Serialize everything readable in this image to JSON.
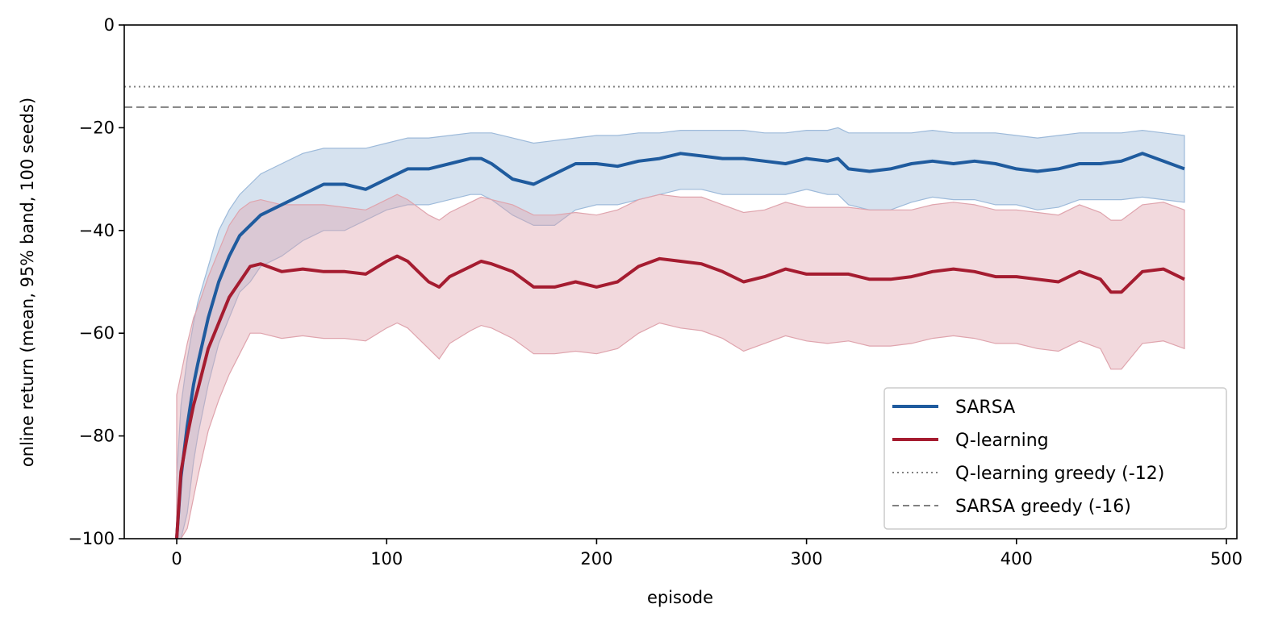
{
  "chart_data": {
    "type": "line",
    "title": "",
    "xlabel": "episode",
    "ylabel": "online return (mean, 95% band, 100 seeds)",
    "xlim": [
      -25,
      505
    ],
    "ylim": [
      -100,
      0
    ],
    "x_ticks": [
      0,
      100,
      200,
      300,
      400,
      500
    ],
    "y_ticks": [
      -100,
      -80,
      -60,
      -40,
      -20,
      0
    ],
    "x_tick_labels": [
      "0",
      "100",
      "200",
      "300",
      "400",
      "500"
    ],
    "y_tick_labels": [
      "−100",
      "−80",
      "−60",
      "−40",
      "−20",
      "0"
    ],
    "grid": false,
    "legend_position": "lower-right",
    "series": [
      {
        "name": "SARSA",
        "color": "#1f5b9e",
        "band_color": "#9dbada",
        "x": [
          0,
          2,
          5,
          8,
          10,
          15,
          20,
          25,
          30,
          35,
          40,
          50,
          60,
          70,
          80,
          90,
          100,
          110,
          120,
          130,
          140,
          145,
          150,
          160,
          170,
          180,
          190,
          200,
          210,
          220,
          230,
          240,
          250,
          260,
          270,
          280,
          290,
          300,
          310,
          315,
          320,
          330,
          340,
          350,
          360,
          370,
          380,
          390,
          400,
          410,
          420,
          430,
          440,
          450,
          460,
          470,
          480
        ],
        "mean": [
          -100,
          -88,
          -78,
          -70,
          -66,
          -57,
          -50,
          -45,
          -41,
          -39,
          -37,
          -35,
          -33,
          -31,
          -31,
          -32,
          -30,
          -28,
          -28,
          -27,
          -26,
          -26,
          -27,
          -30,
          -31,
          -29,
          -27,
          -27,
          -27.5,
          -26.5,
          -26,
          -25,
          -25.5,
          -26,
          -26,
          -26.5,
          -27,
          -26,
          -26.5,
          -26,
          -28,
          -28.5,
          -28,
          -27,
          -26.5,
          -27,
          -26.5,
          -27,
          -28,
          -28.5,
          -28,
          -27,
          -27,
          -26.5,
          -25,
          -26.5,
          -28
        ],
        "upper": [
          -88,
          -74,
          -65,
          -58,
          -54,
          -47,
          -40,
          -36,
          -33,
          -31,
          -29,
          -27,
          -25,
          -24,
          -24,
          -24,
          -23,
          -22,
          -22,
          -21.5,
          -21,
          -21,
          -21,
          -22,
          -23,
          -22.5,
          -22,
          -21.5,
          -21.5,
          -21,
          -21,
          -20.5,
          -20.5,
          -20.5,
          -20.5,
          -21,
          -21,
          -20.5,
          -20.5,
          -20,
          -21,
          -21,
          -21,
          -21,
          -20.5,
          -21,
          -21,
          -21,
          -21.5,
          -22,
          -21.5,
          -21,
          -21,
          -21,
          -20.5,
          -21,
          -21.5
        ],
        "lower": [
          -100,
          -100,
          -95,
          -85,
          -80,
          -70,
          -62,
          -57,
          -52,
          -50,
          -47,
          -45,
          -42,
          -40,
          -40,
          -38,
          -36,
          -35,
          -35,
          -34,
          -33,
          -33,
          -34,
          -37,
          -39,
          -39,
          -36,
          -35,
          -35,
          -34,
          -33,
          -32,
          -32,
          -33,
          -33,
          -33,
          -33,
          -32,
          -33,
          -33,
          -35,
          -36,
          -36,
          -34.5,
          -33.5,
          -34,
          -34,
          -35,
          -35,
          -36,
          -35.5,
          -34,
          -34,
          -34,
          -33.5,
          -34,
          -34.5
        ]
      },
      {
        "name": "Q-learning",
        "color": "#a51c30",
        "band_color": "#dfa4ad",
        "x": [
          0,
          2,
          5,
          8,
          10,
          15,
          20,
          25,
          30,
          35,
          40,
          50,
          60,
          70,
          80,
          90,
          100,
          105,
          110,
          120,
          125,
          130,
          140,
          145,
          150,
          160,
          170,
          180,
          190,
          200,
          210,
          220,
          230,
          240,
          250,
          260,
          270,
          280,
          290,
          300,
          310,
          320,
          330,
          340,
          350,
          360,
          370,
          380,
          390,
          400,
          410,
          420,
          430,
          440,
          445,
          450,
          460,
          470,
          480
        ],
        "mean": [
          -100,
          -87,
          -80,
          -74,
          -71,
          -63,
          -58,
          -53,
          -50,
          -47,
          -46.5,
          -48,
          -47.5,
          -48,
          -48,
          -48.5,
          -46,
          -45,
          -46,
          -50,
          -51,
          -49,
          -47,
          -46,
          -46.5,
          -48,
          -51,
          -51,
          -50,
          -51,
          -50,
          -47,
          -45.5,
          -46,
          -46.5,
          -48,
          -50,
          -49,
          -47.5,
          -48.5,
          -48.5,
          -48.5,
          -49.5,
          -49.5,
          -49,
          -48,
          -47.5,
          -48,
          -49,
          -49,
          -49.5,
          -50,
          -48,
          -49.5,
          -52,
          -52,
          -48,
          -47.5,
          -49.5
        ],
        "upper": [
          -72,
          -68,
          -62,
          -57,
          -55,
          -49,
          -44,
          -39,
          -36,
          -34.5,
          -34,
          -35,
          -35,
          -35,
          -35.5,
          -36,
          -34,
          -33,
          -34,
          -37,
          -38,
          -36.5,
          -34.5,
          -33.5,
          -34,
          -35,
          -37,
          -37,
          -36.5,
          -37,
          -36,
          -34,
          -33,
          -33.5,
          -33.5,
          -35,
          -36.5,
          -36,
          -34.5,
          -35.5,
          -35.5,
          -35.5,
          -36,
          -36,
          -36,
          -35,
          -34.5,
          -35,
          -36,
          -36,
          -36.5,
          -37,
          -35,
          -36.5,
          -38,
          -38,
          -35,
          -34.5,
          -36
        ],
        "lower": [
          -100,
          -100,
          -98,
          -92,
          -88,
          -79,
          -73,
          -68,
          -64,
          -60,
          -60,
          -61,
          -60.5,
          -61,
          -61,
          -61.5,
          -59,
          -58,
          -59,
          -63,
          -65,
          -62,
          -59.5,
          -58.5,
          -59,
          -61,
          -64,
          -64,
          -63.5,
          -64,
          -63,
          -60,
          -58,
          -59,
          -59.5,
          -61,
          -63.5,
          -62,
          -60.5,
          -61.5,
          -62,
          -61.5,
          -62.5,
          -62.5,
          -62,
          -61,
          -60.5,
          -61,
          -62,
          -62,
          -63,
          -63.5,
          -61.5,
          -63,
          -67,
          -67,
          -62,
          -61.5,
          -63
        ]
      }
    ],
    "reference_lines": [
      {
        "name": "Q-learning greedy (-12)",
        "y": -12,
        "style": "dotted",
        "color": "#808080"
      },
      {
        "name": "SARSA greedy (-16)",
        "y": -16,
        "style": "dashed",
        "color": "#808080"
      }
    ]
  }
}
